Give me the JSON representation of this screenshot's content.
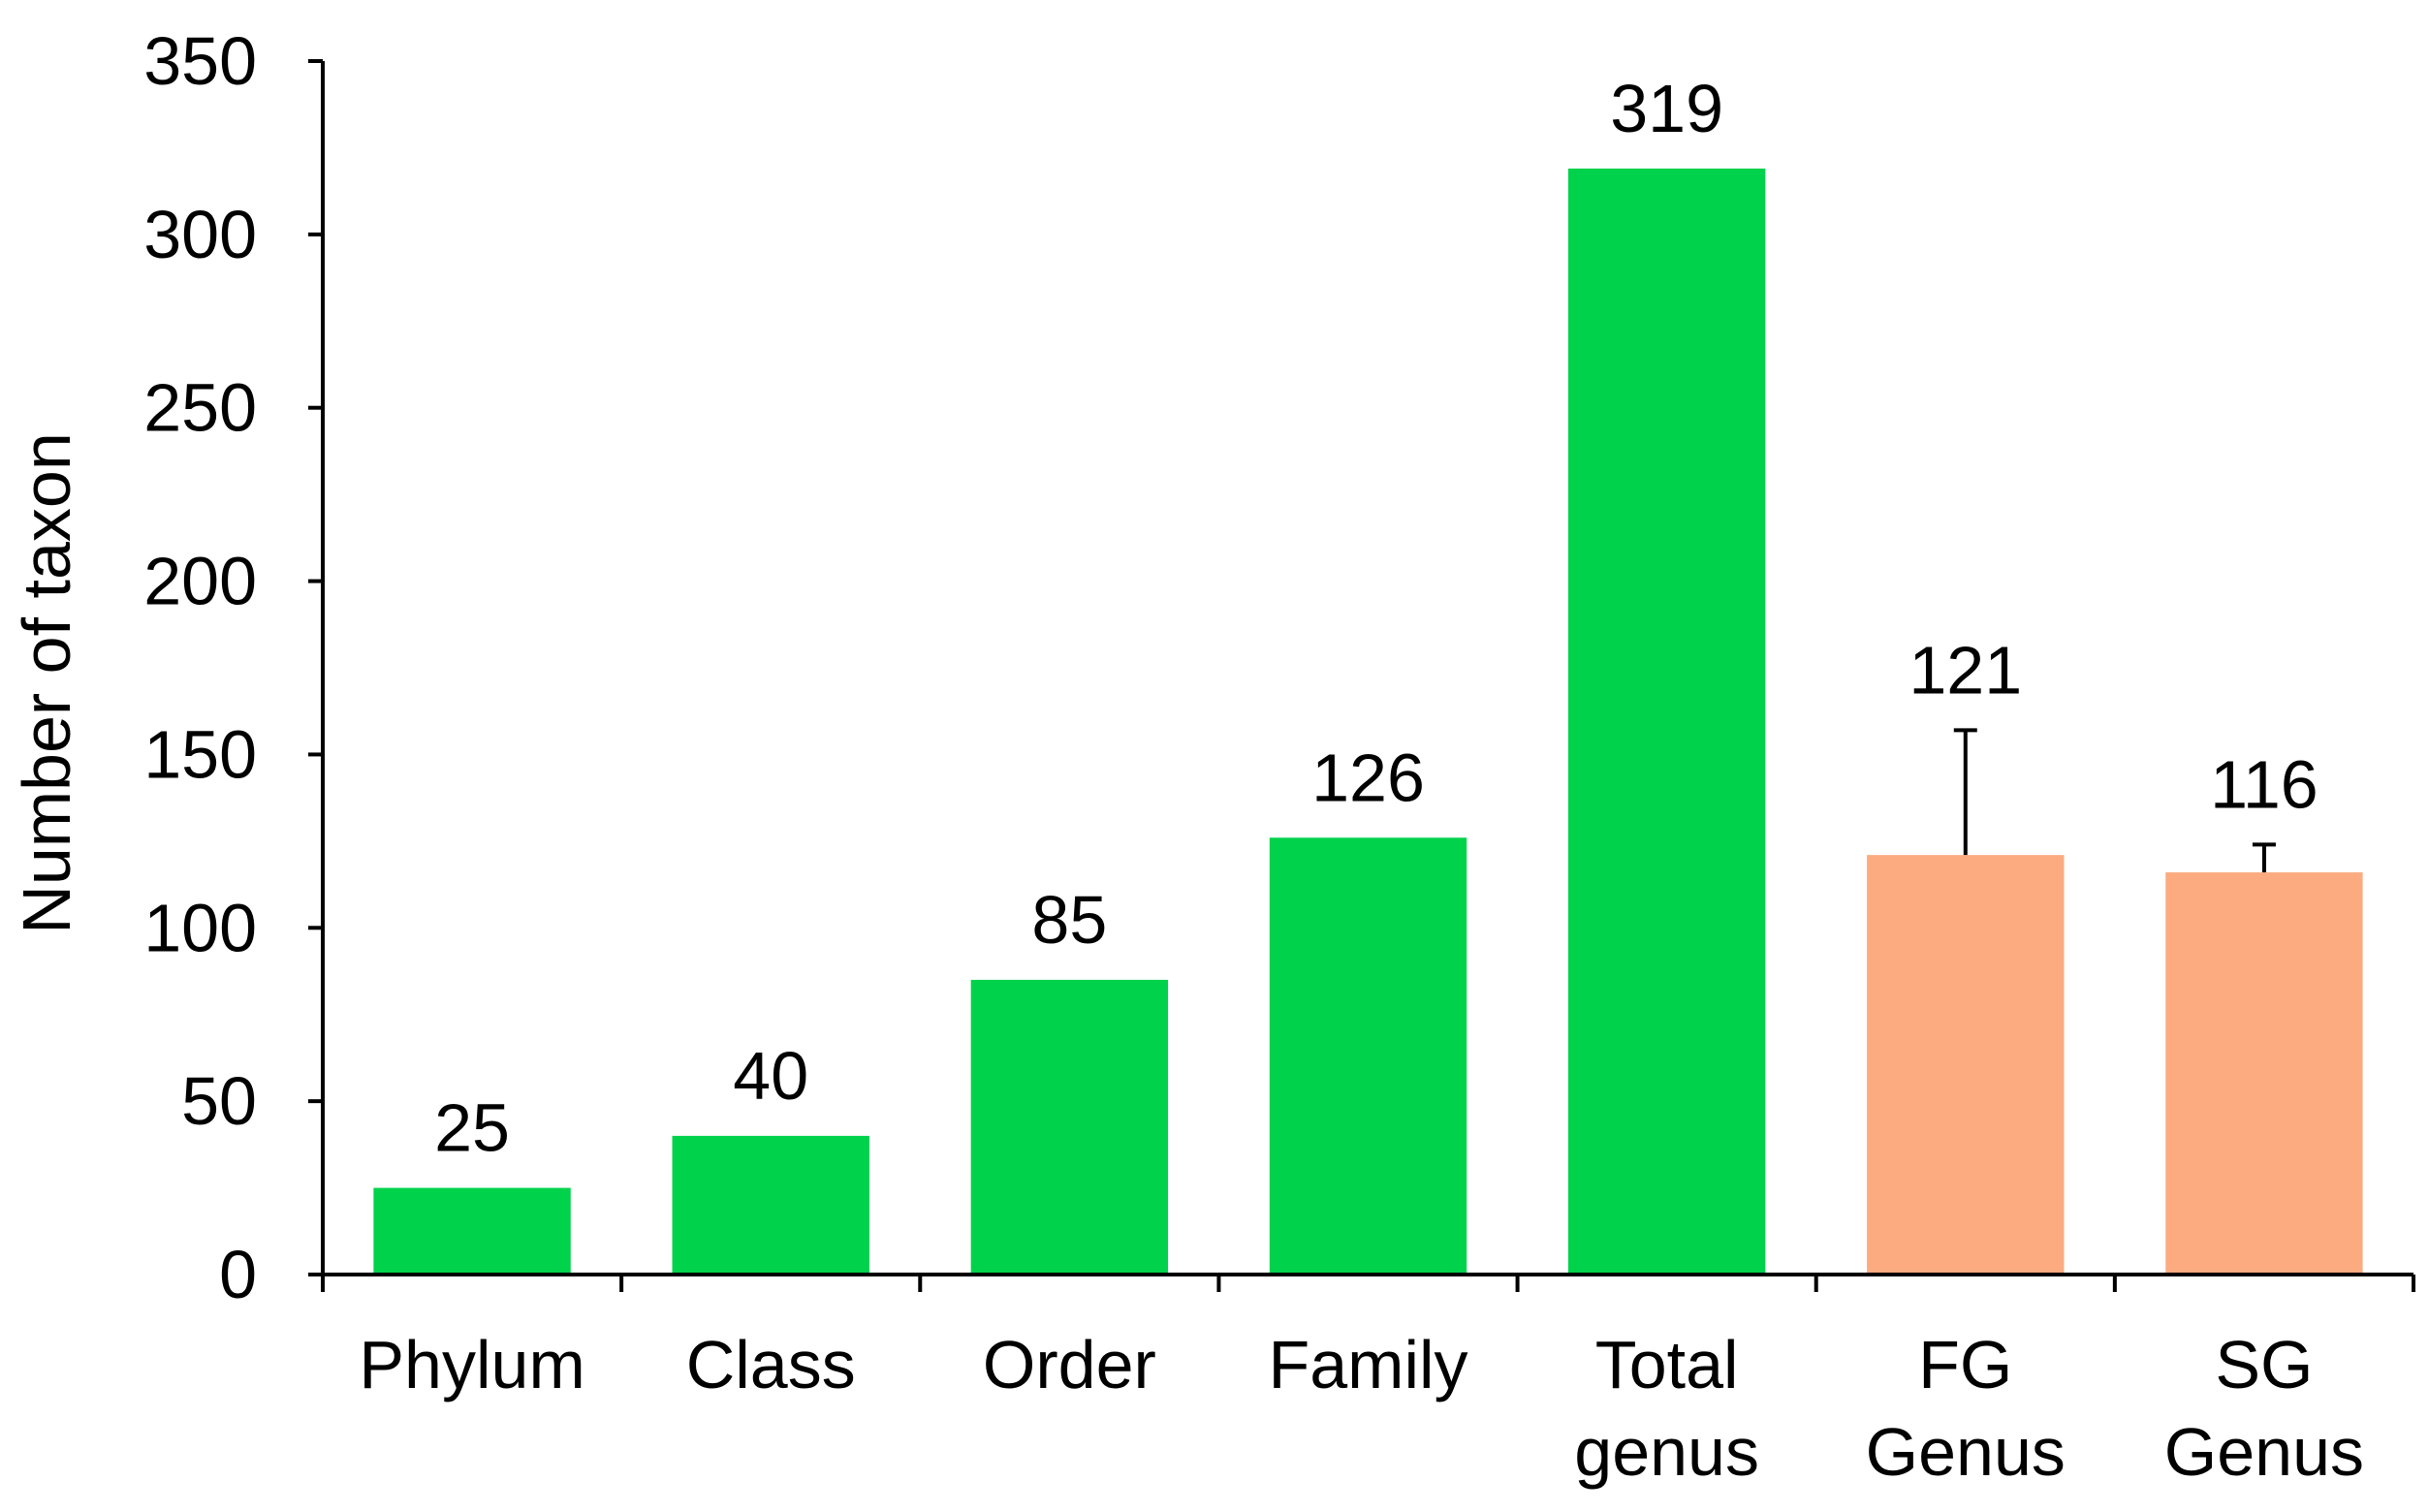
{
  "chart_data": {
    "type": "bar",
    "title": "",
    "xlabel": "",
    "ylabel": "Number of taxon",
    "ylim": [
      0,
      350
    ],
    "yticks": [
      0,
      50,
      100,
      150,
      200,
      250,
      300,
      350
    ],
    "grid": false,
    "legend": "none",
    "categories": [
      [
        "Phylum"
      ],
      [
        "Class"
      ],
      [
        "Order"
      ],
      [
        "Family"
      ],
      [
        "Total",
        "genus"
      ],
      [
        "FG",
        "Genus"
      ],
      [
        "SG",
        "Genus"
      ]
    ],
    "values": [
      25,
      40,
      85,
      126,
      319,
      121,
      116
    ],
    "data_labels": [
      "25",
      "40",
      "85",
      "126",
      "319",
      "121",
      "116"
    ],
    "colors": [
      "#00d24b",
      "#00d24b",
      "#00d24b",
      "#00d24b",
      "#00d24b",
      "#fcab80",
      "#fcab80"
    ],
    "error_bars_upper": [
      null,
      null,
      null,
      null,
      null,
      157,
      124
    ]
  }
}
